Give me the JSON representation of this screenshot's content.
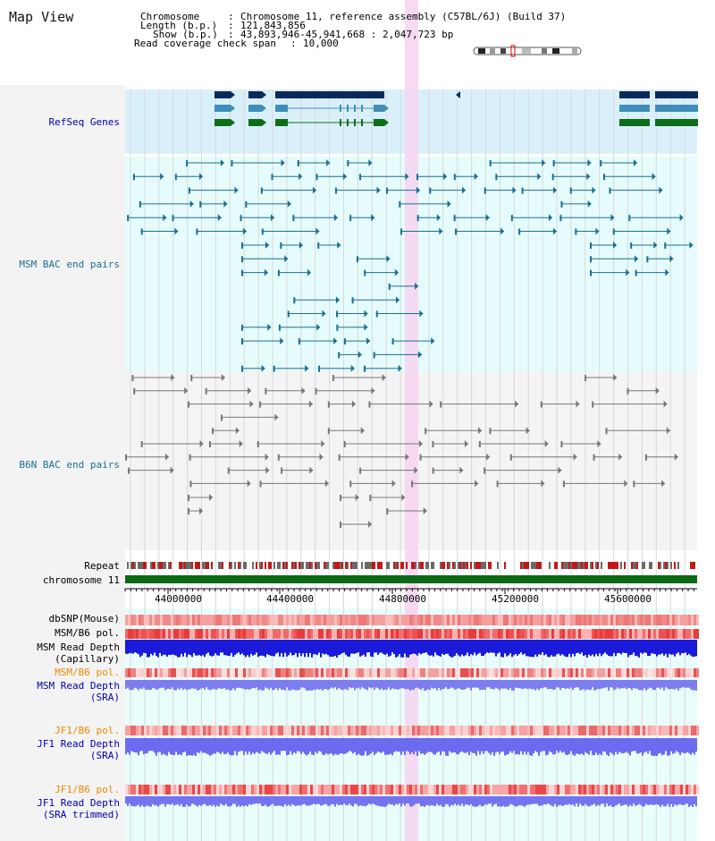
{
  "view_title": "Map View",
  "info": {
    "chromosome_key": "Chromosome",
    "chromosome_val": "Chromosome 11, reference assembly (C57BL/6J) (Build 37)",
    "length_key": "Length (b.p.)",
    "length_val": "121,843,856",
    "show_key": "Show (b.p.)",
    "show_val": "43,893,946-45,941,668 : 2,047,723 bp",
    "coverage_key": "Read coverage check span",
    "coverage_val": "10,000"
  },
  "tracks": {
    "refseq": "RefSeq Genes",
    "msm_bac": "MSM BAC end pairs",
    "b6n_bac": "B6N BAC end pairs",
    "repeat": "Repeat",
    "chromosome": "chromosome 11",
    "dbsnp": "dbSNP(Mouse)",
    "msm_b6_pol": "MSM/B6 pol.",
    "msm_depth_cap_1": "MSM Read Depth",
    "msm_depth_cap_2": "(Capillary)",
    "msm_b6_pol_sra": "MSM/B6 pol.",
    "msm_depth_sra_1": "MSM Read Depth",
    "msm_depth_sra_2": "(SRA)",
    "jf1_pol": "JF1/B6 pol.",
    "jf1_depth_1": "JF1 Read Depth",
    "jf1_depth_2": "(SRA)",
    "jf1_pol_trim": "JF1/B6 pol.",
    "jf1_trim_1": "JF1 Read Depth",
    "jf1_trim_2": "(SRA trimmed)"
  },
  "axis_ticks": [
    "44000000",
    "44400000",
    "44800000",
    "45200000",
    "45600000"
  ],
  "colors": {
    "refseq_bg": "#d9f0fb",
    "msm_bg": "#e6fcfc",
    "highlight": "#f6d4f0",
    "gene_dark": "#0b2a5c",
    "gene_mid": "#3f8eb8",
    "gene_green": "#0d6e1a",
    "msm_line": "#1a6f92",
    "b6n_line": "#777777",
    "chrom_bar": "#0c6a16",
    "label_blue": "#0000aa",
    "label_orange": "#ee8800"
  }
}
